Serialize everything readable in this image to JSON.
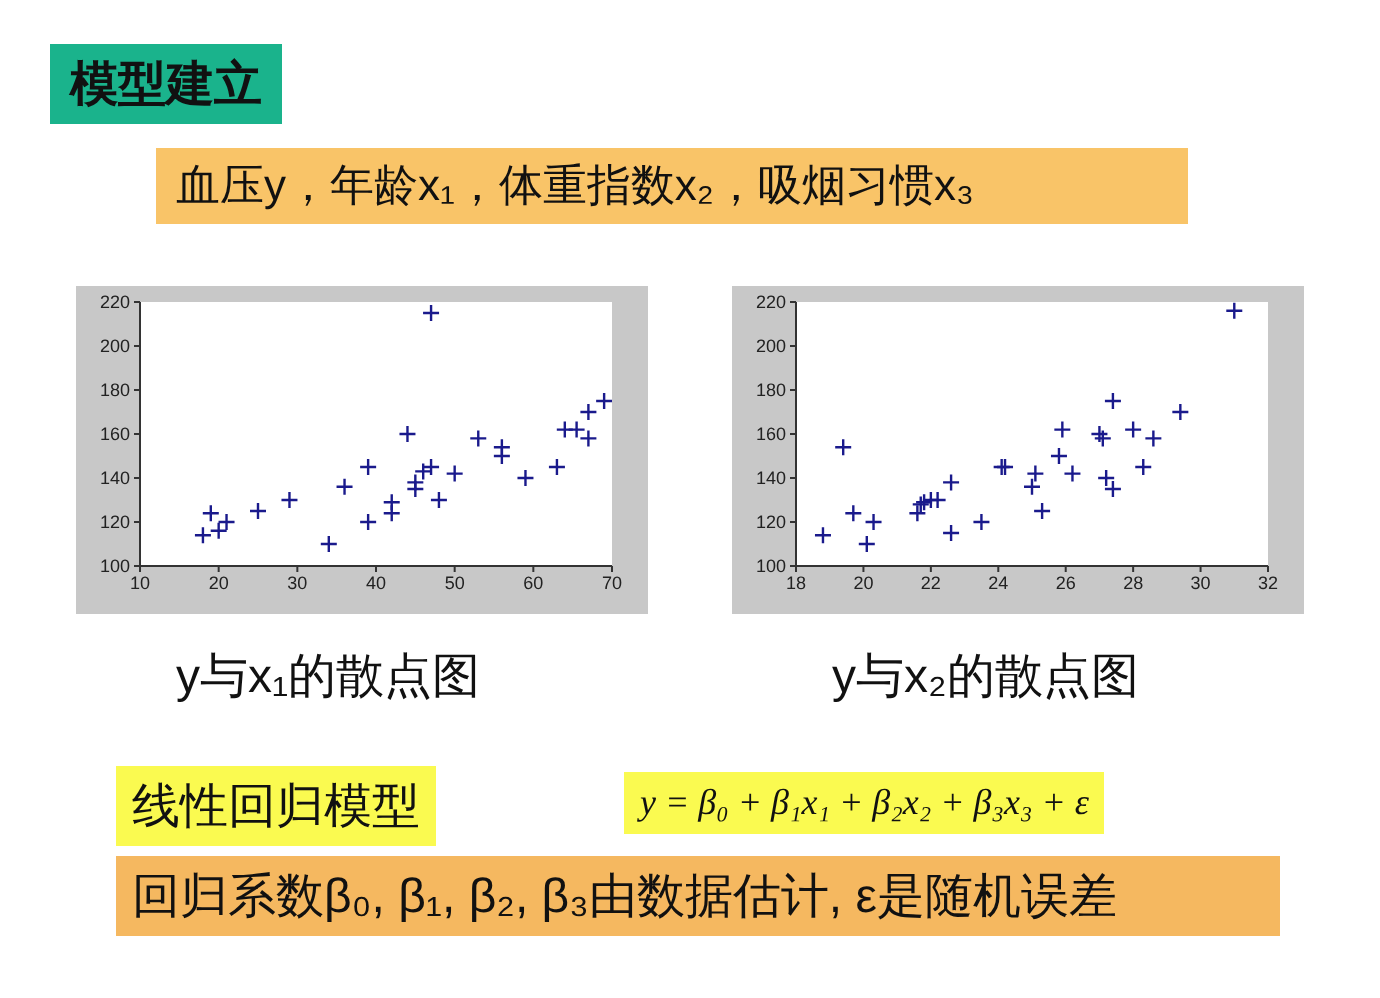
{
  "chart_data": [
    {
      "type": "scatter",
      "title": "模型建立",
      "subtitle": "血压y，年龄x₁，体重指数x₂，吸烟习惯x₃",
      "xlabel": "y与x₁的散点图",
      "marker": "cross",
      "grid": false,
      "legend": false,
      "xlim": [
        10,
        70
      ],
      "xticks": [
        10,
        20,
        30,
        40,
        50,
        60,
        70
      ],
      "ylim": [
        100,
        220
      ],
      "yticks": [
        100,
        120,
        140,
        160,
        180,
        200,
        220
      ],
      "series": [
        {
          "color": "#1a1a8c",
          "x": [
            18,
            19,
            20,
            21,
            25,
            29,
            34,
            36,
            39,
            39,
            42,
            42,
            44,
            45,
            45,
            46,
            47,
            47,
            48,
            50,
            53,
            56,
            56,
            59,
            63,
            64,
            65.5,
            67,
            67,
            69
          ],
          "values": [
            114,
            124,
            116,
            120,
            125,
            130,
            110,
            136,
            145,
            120,
            129,
            124,
            160,
            135,
            138,
            143,
            145,
            215,
            130,
            142,
            158,
            154,
            150,
            140,
            145,
            162,
            162,
            170,
            158,
            175
          ]
        }
      ]
    },
    {
      "type": "scatter",
      "xlabel": "y与x₂的散点图",
      "marker": "cross",
      "grid": false,
      "legend": false,
      "xlim": [
        18,
        32
      ],
      "xticks": [
        18,
        20,
        22,
        24,
        26,
        28,
        30,
        32
      ],
      "ylim": [
        100,
        220
      ],
      "yticks": [
        100,
        120,
        140,
        160,
        180,
        200,
        220
      ],
      "annotations": [
        "线性回归模型",
        "y = β₀ + β₁x₁ + β₂x₂ + β₃x₃ + ε",
        "回归系数β₀, β₁, β₂, β₃由数据估计, ε是随机误差"
      ],
      "series": [
        {
          "color": "#1a1a8c",
          "x": [
            18.8,
            19.4,
            19.7,
            20.1,
            20.3,
            21.6,
            21.7,
            21.8,
            22.0,
            22.2,
            22.6,
            22.6,
            23.5,
            24.1,
            24.2,
            25.0,
            25.1,
            25.3,
            25.8,
            25.9,
            26.2,
            27.0,
            27.1,
            27.2,
            27.4,
            27.4,
            28.0,
            28.3,
            28.6,
            29.4,
            31.0
          ],
          "values": [
            114,
            154,
            124,
            110,
            120,
            124,
            128,
            129,
            130,
            130,
            138,
            115,
            120,
            145,
            145,
            136,
            142,
            125,
            150,
            162,
            142,
            160,
            158,
            140,
            175,
            135,
            162,
            145,
            158,
            170,
            216
          ]
        }
      ]
    }
  ]
}
